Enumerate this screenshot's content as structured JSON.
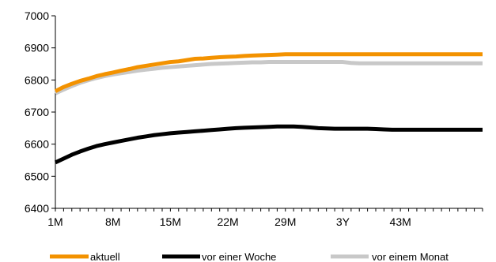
{
  "chart_data": {
    "type": "line",
    "title": "",
    "xlabel": "",
    "ylabel": "",
    "ylim": [
      6400,
      7000
    ],
    "yticks": [
      6400,
      6500,
      6600,
      6700,
      6800,
      6900,
      7000
    ],
    "x_tick_labels": [
      "1M",
      "8M",
      "15M",
      "22M",
      "29M",
      "3Y",
      "43M"
    ],
    "x_tick_index": [
      0,
      7,
      14,
      21,
      28,
      35,
      42
    ],
    "x": [
      0,
      1,
      2,
      3,
      4,
      5,
      6,
      7,
      8,
      9,
      10,
      11,
      12,
      13,
      14,
      15,
      16,
      17,
      18,
      19,
      20,
      21,
      22,
      23,
      24,
      25,
      26,
      27,
      28,
      29,
      30,
      31,
      32,
      33,
      34,
      35,
      36,
      37,
      38,
      39,
      40,
      41,
      42,
      43,
      44,
      45,
      46,
      47,
      48,
      49,
      50,
      51,
      52
    ],
    "grid": false,
    "legend_position": "bottom",
    "series": [
      {
        "name": "aktuell",
        "color": "#f39200",
        "values": [
          6765,
          6778,
          6788,
          6797,
          6804,
          6812,
          6818,
          6823,
          6829,
          6834,
          6840,
          6844,
          6848,
          6852,
          6856,
          6858,
          6862,
          6866,
          6867,
          6869,
          6871,
          6872,
          6873,
          6875,
          6876,
          6877,
          6878,
          6879,
          6880,
          6880,
          6880,
          6880,
          6880,
          6880,
          6880,
          6880,
          6880,
          6880,
          6880,
          6880,
          6880,
          6880,
          6880,
          6880,
          6880,
          6880,
          6880,
          6880,
          6880,
          6880,
          6880,
          6880,
          6880
        ]
      },
      {
        "name": "vor einer Woche",
        "color": "#000000",
        "values": [
          6543,
          6555,
          6567,
          6577,
          6586,
          6594,
          6600,
          6605,
          6610,
          6615,
          6620,
          6624,
          6628,
          6631,
          6634,
          6636,
          6638,
          6640,
          6642,
          6644,
          6646,
          6648,
          6650,
          6651,
          6652,
          6653,
          6654,
          6655,
          6655,
          6655,
          6654,
          6652,
          6650,
          6649,
          6648,
          6648,
          6648,
          6648,
          6648,
          6647,
          6646,
          6645,
          6645,
          6645,
          6645,
          6645,
          6645,
          6645,
          6645,
          6645,
          6645,
          6645,
          6645
        ]
      },
      {
        "name": "vor einem Monat",
        "color": "#c8c8c8",
        "values": [
          6758,
          6770,
          6781,
          6791,
          6799,
          6806,
          6812,
          6817,
          6821,
          6825,
          6829,
          6832,
          6835,
          6838,
          6840,
          6842,
          6844,
          6846,
          6848,
          6850,
          6851,
          6852,
          6853,
          6854,
          6855,
          6855,
          6856,
          6856,
          6856,
          6856,
          6856,
          6856,
          6856,
          6856,
          6856,
          6856,
          6853,
          6852,
          6852,
          6852,
          6852,
          6852,
          6852,
          6852,
          6852,
          6852,
          6852,
          6852,
          6852,
          6852,
          6852,
          6852,
          6852
        ]
      }
    ]
  }
}
